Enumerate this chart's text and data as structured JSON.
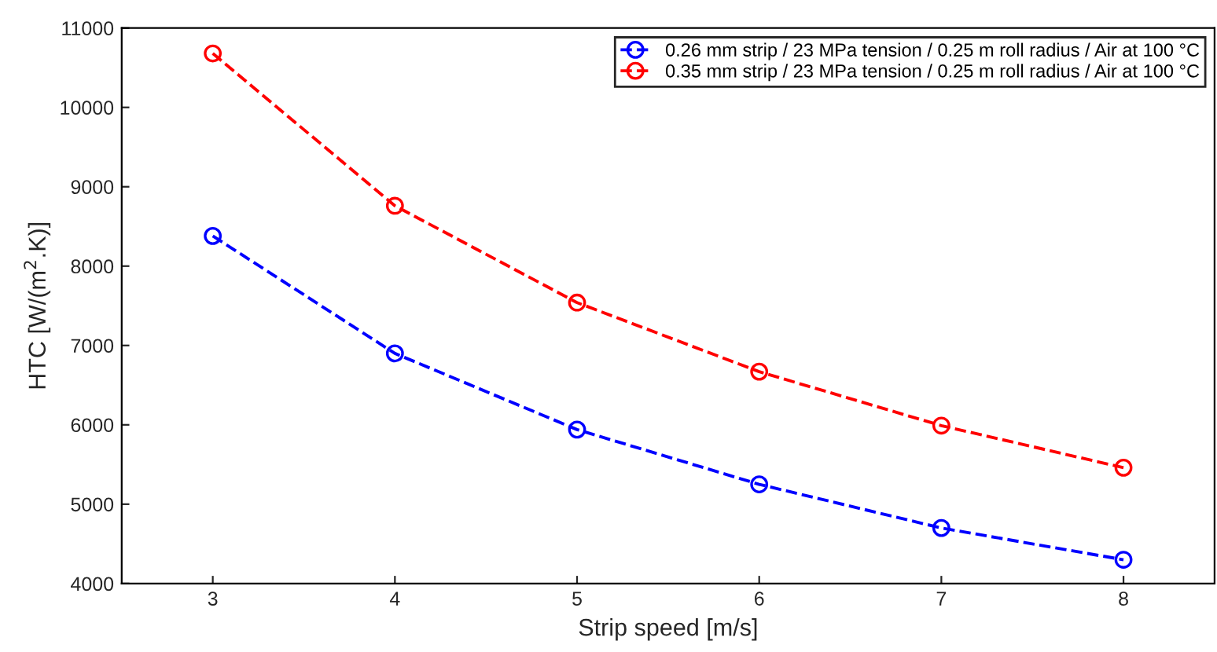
{
  "chart_data": {
    "type": "line",
    "xlabel": "Strip speed [m/s]",
    "ylabel": "HTC [W/(m$^{2}$.K)]",
    "x": [
      3,
      4,
      5,
      6,
      7,
      8
    ],
    "series": [
      {
        "name": "0.26 mm strip / 23 MPa tension / 0.25 m roll radius / Air at 100 °C",
        "color": "#0000ff",
        "values": [
          8380,
          6900,
          5940,
          5250,
          4700,
          4300
        ]
      },
      {
        "name": "0.35 mm strip / 23 MPa tension / 0.25 m roll radius / Air at 100 °C",
        "color": "#ff0000",
        "values": [
          10680,
          8760,
          7540,
          6670,
          5990,
          5460
        ]
      }
    ],
    "xlim": [
      2.5,
      8.5
    ],
    "xticks": [
      3,
      4,
      5,
      6,
      7,
      8
    ],
    "ylim": [
      4000,
      11000
    ],
    "yticks": [
      4000,
      5000,
      6000,
      7000,
      8000,
      9000,
      10000,
      11000
    ],
    "grid": false,
    "legend": "top right",
    "marker": "circle",
    "line_style": "dashed"
  }
}
